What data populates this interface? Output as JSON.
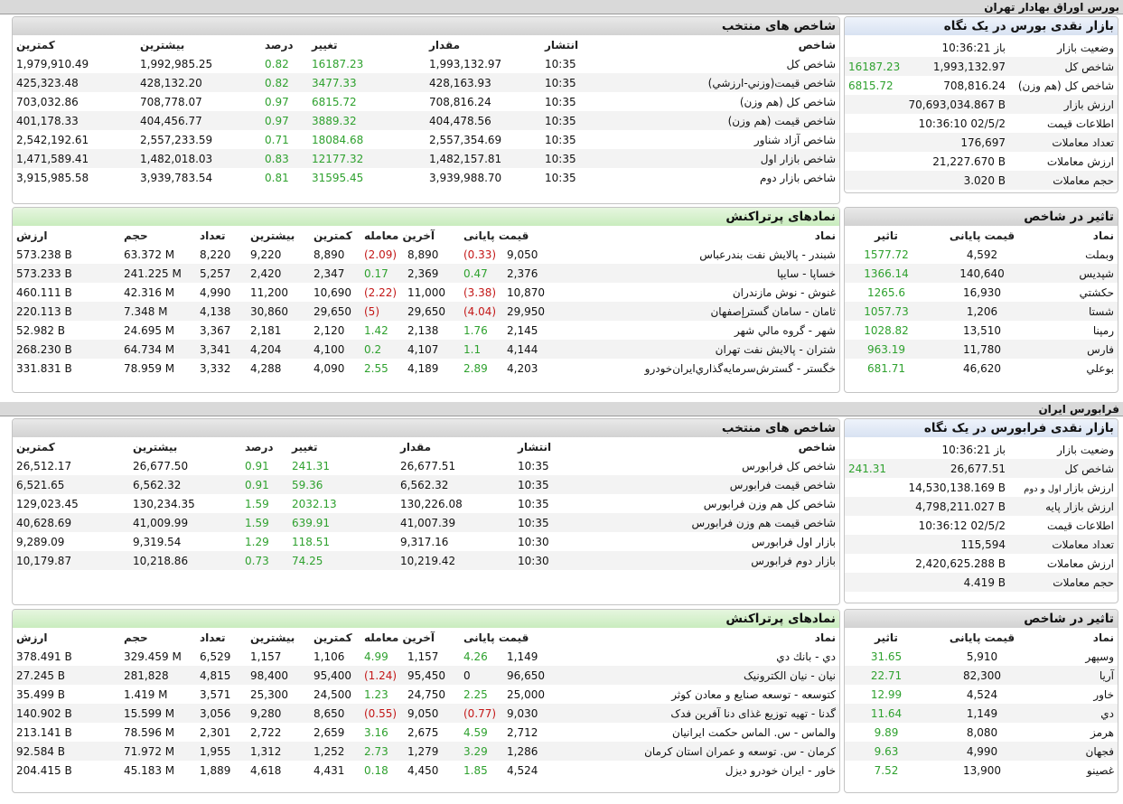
{
  "page_title": "بورس اوراق بهادار تهران",
  "farabourse_title": "فرابورس ایران",
  "tse": {
    "glance": {
      "title": "بازار نقدی بورس در یک نگاه",
      "rows": [
        {
          "label": "وضعیت بازار",
          "value": "باز 10:36:21",
          "change": ""
        },
        {
          "label": "شاخص کل",
          "value": "1,993,132.97",
          "change": "16187.23"
        },
        {
          "label": "شاخص کل (هم وزن)",
          "value": "708,816.24",
          "change": "6815.72"
        },
        {
          "label": "ارزش بازار",
          "value": "70,693,034.867 B",
          "change": ""
        },
        {
          "label": "اطلاعات قیمت",
          "value": "10:36:10 02/5/2",
          "change": ""
        },
        {
          "label": "تعداد معاملات",
          "value": "176,697",
          "change": ""
        },
        {
          "label": "ارزش معاملات",
          "value": "21,227.670 B",
          "change": ""
        },
        {
          "label": "حجم معاملات",
          "value": "3.020 B",
          "change": ""
        }
      ]
    },
    "indices": {
      "title": "شاخص های منتخب",
      "headers": [
        "شاخص",
        "انتشار",
        "مقدار",
        "تغییر",
        "درصد",
        "بیشترین",
        "کمترین"
      ],
      "rows": [
        {
          "name": "شاخص کل",
          "time": "10:35",
          "value": "1,993,132.97",
          "change": "16187.23",
          "percent": "0.82",
          "high": "1,992,985.25",
          "low": "1,979,910.49"
        },
        {
          "name": "شاخص قيمت(وزني-ارزشي)",
          "time": "10:35",
          "value": "428,163.93",
          "change": "3477.33",
          "percent": "0.82",
          "high": "428,132.20",
          "low": "425,323.48"
        },
        {
          "name": "شاخص كل (هم وزن)",
          "time": "10:35",
          "value": "708,816.24",
          "change": "6815.72",
          "percent": "0.97",
          "high": "708,778.07",
          "low": "703,032.86"
        },
        {
          "name": "شاخص قيمت (هم وزن)",
          "time": "10:35",
          "value": "404,478.56",
          "change": "3889.32",
          "percent": "0.97",
          "high": "404,456.77",
          "low": "401,178.33"
        },
        {
          "name": "شاخص آزاد شناور",
          "time": "10:35",
          "value": "2,557,354.69",
          "change": "18084.68",
          "percent": "0.71",
          "high": "2,557,233.59",
          "low": "2,542,192.61"
        },
        {
          "name": "شاخص بازار اول",
          "time": "10:35",
          "value": "1,482,157.81",
          "change": "12177.32",
          "percent": "0.83",
          "high": "1,482,018.03",
          "low": "1,471,589.41"
        },
        {
          "name": "شاخص بازار دوم",
          "time": "10:35",
          "value": "3,939,988.70",
          "change": "31595.45",
          "percent": "0.81",
          "high": "3,939,783.54",
          "low": "3,915,985.58"
        }
      ]
    },
    "impact": {
      "title": "تاثیر در شاخص",
      "headers": [
        "نماد",
        "قیمت پایانی",
        "تاثیر"
      ],
      "rows": [
        {
          "symbol": "وبملت",
          "price": "4,592",
          "impact": "1577.72"
        },
        {
          "symbol": "شپدیس",
          "price": "140,640",
          "impact": "1366.14"
        },
        {
          "symbol": "حکشتي",
          "price": "16,930",
          "impact": "1265.6"
        },
        {
          "symbol": "شستا",
          "price": "1,206",
          "impact": "1057.73"
        },
        {
          "symbol": "رمپنا",
          "price": "13,510",
          "impact": "1028.82"
        },
        {
          "symbol": "فارس",
          "price": "11,780",
          "impact": "963.19"
        },
        {
          "symbol": "بوعلي",
          "price": "46,620",
          "impact": "681.71"
        }
      ]
    },
    "active": {
      "title": "نمادهای پرتراکنش",
      "headers": [
        "نماد",
        "قیمت پایانی",
        "آخرین معامله",
        "کمترین",
        "بیشترین",
        "تعداد",
        "حجم",
        "ارزش"
      ],
      "rows": [
        {
          "symbol": "شبندر - پالايش نفت بندرعباس",
          "close": "9,050",
          "close_chg": "(0.33)",
          "last": "8,890",
          "last_chg": "(2.09)",
          "low": "8,890",
          "high": "9,220",
          "count": "8,220",
          "volume": "63.372 M",
          "value": "573.238 B"
        },
        {
          "symbol": "خساپا - سايپا",
          "close": "2,376",
          "close_chg": "0.47",
          "last": "2,369",
          "last_chg": "0.17",
          "low": "2,347",
          "high": "2,420",
          "count": "5,257",
          "volume": "241.225 M",
          "value": "573.233 B"
        },
        {
          "symbol": "غنوش - نوش مازندران",
          "close": "10,870",
          "close_chg": "(3.38)",
          "last": "11,000",
          "last_chg": "(2.22)",
          "low": "10,690",
          "high": "11,200",
          "count": "4,990",
          "volume": "42.316 M",
          "value": "460.111 B"
        },
        {
          "symbol": "ثامان - سامان گسترإصفهان",
          "close": "29,950",
          "close_chg": "(4.04)",
          "last": "29,650",
          "last_chg": "(5)",
          "low": "29,650",
          "high": "30,860",
          "count": "4,138",
          "volume": "7.348 M",
          "value": "220.113 B"
        },
        {
          "symbol": "شهر - گروه مالي شهر",
          "close": "2,145",
          "close_chg": "1.76",
          "last": "2,138",
          "last_chg": "1.42",
          "low": "2,120",
          "high": "2,181",
          "count": "3,367",
          "volume": "24.695 M",
          "value": "52.982 B"
        },
        {
          "symbol": "شتران - پالايش نفت تهران",
          "close": "4,144",
          "close_chg": "1.1",
          "last": "4,107",
          "last_chg": "0.2",
          "low": "4,100",
          "high": "4,204",
          "count": "3,341",
          "volume": "64.734 M",
          "value": "268.230 B"
        },
        {
          "symbol": "خگستر - گسترش‌سرمايه‌گذاري‌ايران‌خودرو",
          "close": "4,203",
          "close_chg": "2.89",
          "last": "4,189",
          "last_chg": "2.55",
          "low": "4,090",
          "high": "4,288",
          "count": "3,332",
          "volume": "78.959 M",
          "value": "331.831 B"
        }
      ]
    }
  },
  "ifb": {
    "glance": {
      "title": "بازار نقدی فرابورس در یک نگاه",
      "rows": [
        {
          "label": "وضعیت بازار",
          "label_small": "",
          "value": "باز 10:36:21",
          "change": ""
        },
        {
          "label": "شاخص کل",
          "label_small": "",
          "value": "26,677.51",
          "change": "241.31"
        },
        {
          "label": "ارزش بازار",
          "label_small": "اول و دوم",
          "value": "14,530,138.169 B",
          "change": ""
        },
        {
          "label": "ارزش بازار پایه",
          "label_small": "",
          "value": "4,798,211.027 B",
          "change": ""
        },
        {
          "label": "اطلاعات قیمت",
          "label_small": "",
          "value": "10:36:12 02/5/2",
          "change": ""
        },
        {
          "label": "تعداد معاملات",
          "label_small": "",
          "value": "115,594",
          "change": ""
        },
        {
          "label": "ارزش معاملات",
          "label_small": "",
          "value": "2,420,625.288 B",
          "change": ""
        },
        {
          "label": "حجم معاملات",
          "label_small": "",
          "value": "4.419 B",
          "change": ""
        }
      ]
    },
    "indices": {
      "title": "شاخص های منتخب",
      "headers": [
        "شاخص",
        "انتشار",
        "مقدار",
        "تغییر",
        "درصد",
        "بیشترین",
        "کمترین"
      ],
      "rows": [
        {
          "name": "شاخص کل فرابورس",
          "time": "10:35",
          "value": "26,677.51",
          "change": "241.31",
          "percent": "0.91",
          "high": "26,677.50",
          "low": "26,512.17"
        },
        {
          "name": "شاخص قیمت فرابورس",
          "time": "10:35",
          "value": "6,562.32",
          "change": "59.36",
          "percent": "0.91",
          "high": "6,562.32",
          "low": "6,521.65"
        },
        {
          "name": "شاخص کل هم وزن فرابورس",
          "time": "10:35",
          "value": "130,226.08",
          "change": "2032.13",
          "percent": "1.59",
          "high": "130,234.35",
          "low": "129,023.45"
        },
        {
          "name": "شاخص قیمت هم وزن فرابورس",
          "time": "10:35",
          "value": "41,007.39",
          "change": "639.91",
          "percent": "1.59",
          "high": "41,009.99",
          "low": "40,628.69"
        },
        {
          "name": "بازار اول فرابورس",
          "time": "10:30",
          "value": "9,317.16",
          "change": "118.51",
          "percent": "1.29",
          "high": "9,319.54",
          "low": "9,289.09"
        },
        {
          "name": "بازار دوم فرابورس",
          "time": "10:30",
          "value": "10,219.42",
          "change": "74.25",
          "percent": "0.73",
          "high": "10,218.86",
          "low": "10,179.87"
        }
      ]
    },
    "impact": {
      "title": "تاثیر در شاخص",
      "headers": [
        "نماد",
        "قیمت پایانی",
        "تاثیر"
      ],
      "rows": [
        {
          "symbol": "وسپهر",
          "price": "5,910",
          "impact": "31.65"
        },
        {
          "symbol": "آریا",
          "price": "82,300",
          "impact": "22.71"
        },
        {
          "symbol": "خاور",
          "price": "4,524",
          "impact": "12.99"
        },
        {
          "symbol": "دي",
          "price": "1,149",
          "impact": "11.64"
        },
        {
          "symbol": "هرمز",
          "price": "8,080",
          "impact": "9.89"
        },
        {
          "symbol": "فجهان",
          "price": "4,990",
          "impact": "9.63"
        },
        {
          "symbol": "غصینو",
          "price": "13,900",
          "impact": "7.52"
        }
      ]
    },
    "active": {
      "title": "نمادهای پرتراکنش",
      "headers": [
        "نماد",
        "قیمت پایانی",
        "آخرین معامله",
        "کمترین",
        "بیشترین",
        "تعداد",
        "حجم",
        "ارزش"
      ],
      "rows": [
        {
          "symbol": "دي - بانك دي",
          "close": "1,149",
          "close_chg": "4.26",
          "last": "1,157",
          "last_chg": "4.99",
          "low": "1,106",
          "high": "1,157",
          "count": "6,529",
          "volume": "329.459 M",
          "value": "378.491 B"
        },
        {
          "symbol": "نیان - نیان الکترونیک",
          "close": "96,650",
          "close_chg": "0",
          "last": "95,450",
          "last_chg": "(1.24)",
          "low": "95,400",
          "high": "98,400",
          "count": "4,815",
          "volume": "281,828",
          "value": "27.245 B"
        },
        {
          "symbol": "کتوسعه - توسعه صنایع و معادن کوثر",
          "close": "25,000",
          "close_chg": "2.25",
          "last": "24,750",
          "last_chg": "1.23",
          "low": "24,500",
          "high": "25,300",
          "count": "3,571",
          "volume": "1.419 M",
          "value": "35.499 B"
        },
        {
          "symbol": "گدنا - تهیه توزیع غذای دنا آفرین فدک",
          "close": "9,030",
          "close_chg": "(0.77)",
          "last": "9,050",
          "last_chg": "(0.55)",
          "low": "8,650",
          "high": "9,280",
          "count": "3,056",
          "volume": "15.599 M",
          "value": "140.902 B"
        },
        {
          "symbol": "والماس - س. الماس حکمت ایرانیان",
          "close": "2,712",
          "close_chg": "4.59",
          "last": "2,675",
          "last_chg": "3.16",
          "low": "2,659",
          "high": "2,722",
          "count": "2,301",
          "volume": "78.596 M",
          "value": "213.141 B"
        },
        {
          "symbol": "کرمان - س. توسعه و عمران استان کرمان",
          "close": "1,286",
          "close_chg": "3.29",
          "last": "1,279",
          "last_chg": "2.73",
          "low": "1,252",
          "high": "1,312",
          "count": "1,955",
          "volume": "71.972 M",
          "value": "92.584 B"
        },
        {
          "symbol": "خاور - ایران خودرو دیزل",
          "close": "4,524",
          "close_chg": "1.85",
          "last": "4,450",
          "last_chg": "0.18",
          "low": "4,431",
          "high": "4,618",
          "count": "1,889",
          "volume": "45.183 M",
          "value": "204.415 B"
        }
      ]
    }
  }
}
